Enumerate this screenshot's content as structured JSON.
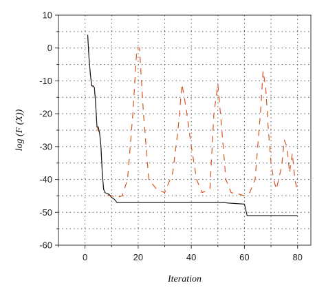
{
  "chart_data": {
    "type": "line",
    "xlabel": "Iteration",
    "ylabel": "log (F (X))",
    "xlim": [
      -10,
      85
    ],
    "ylim": [
      -60,
      10
    ],
    "xticks": [
      0,
      20,
      40,
      60,
      80
    ],
    "yticks": [
      10,
      0,
      -10,
      -20,
      -30,
      -40,
      -50,
      -60
    ],
    "grid": "dotted",
    "series": [
      {
        "style": "solid",
        "color": "#1a1a1a",
        "points": [
          [
            1,
            4
          ],
          [
            1.5,
            -3
          ],
          [
            2,
            -8
          ],
          [
            2.5,
            -11.5
          ],
          [
            3,
            -11.5
          ],
          [
            3.5,
            -12
          ],
          [
            4,
            -17
          ],
          [
            4.5,
            -24
          ],
          [
            5,
            -24
          ],
          [
            5.5,
            -26
          ],
          [
            6,
            -30
          ],
          [
            6.5,
            -38
          ],
          [
            7,
            -43
          ],
          [
            7.5,
            -44
          ],
          [
            9,
            -44.5
          ],
          [
            10,
            -45.5
          ],
          [
            11,
            -46
          ],
          [
            12,
            -47
          ],
          [
            30,
            -47
          ],
          [
            52,
            -47
          ],
          [
            54,
            -47.2
          ],
          [
            56,
            -47.3
          ],
          [
            60,
            -47.5
          ],
          [
            61,
            -51
          ],
          [
            63,
            -51
          ],
          [
            80,
            -51
          ]
        ]
      },
      {
        "style": "dashed",
        "color": "#d9531e",
        "points": [
          [
            1,
            4
          ],
          [
            1.5,
            -3
          ],
          [
            2,
            -8
          ],
          [
            2.5,
            -11.5
          ],
          [
            3.5,
            -12
          ],
          [
            4,
            -17
          ],
          [
            4.5,
            -24
          ],
          [
            5.5,
            -26
          ],
          [
            6,
            -30
          ],
          [
            6.5,
            -38
          ],
          [
            7,
            -43
          ],
          [
            8,
            -44.5
          ],
          [
            10,
            -45
          ],
          [
            12,
            -45.5
          ],
          [
            14,
            -45
          ],
          [
            16,
            -40
          ],
          [
            18,
            -20
          ],
          [
            19.5,
            0
          ],
          [
            20.5,
            0
          ],
          [
            22,
            -20
          ],
          [
            24,
            -40
          ],
          [
            27,
            -43
          ],
          [
            30,
            -44
          ],
          [
            33,
            -38
          ],
          [
            35,
            -25
          ],
          [
            36.5,
            -11
          ],
          [
            38,
            -18
          ],
          [
            40,
            -30
          ],
          [
            42,
            -40
          ],
          [
            44,
            -44
          ],
          [
            47,
            -43
          ],
          [
            48.5,
            -20
          ],
          [
            50,
            -11
          ],
          [
            51.5,
            -25
          ],
          [
            53,
            -40
          ],
          [
            55,
            -44
          ],
          [
            58,
            -44.5
          ],
          [
            60,
            -45
          ],
          [
            62,
            -44
          ],
          [
            64,
            -40
          ],
          [
            65,
            -30
          ],
          [
            66,
            -20
          ],
          [
            67,
            -7
          ],
          [
            68,
            -12
          ],
          [
            69,
            -25
          ],
          [
            70,
            -35
          ],
          [
            71,
            -40
          ],
          [
            72,
            -43
          ],
          [
            74,
            -36
          ],
          [
            75,
            -28
          ],
          [
            76,
            -30
          ],
          [
            77,
            -38
          ],
          [
            78,
            -32
          ],
          [
            79,
            -40
          ],
          [
            80,
            -44
          ]
        ]
      }
    ]
  }
}
